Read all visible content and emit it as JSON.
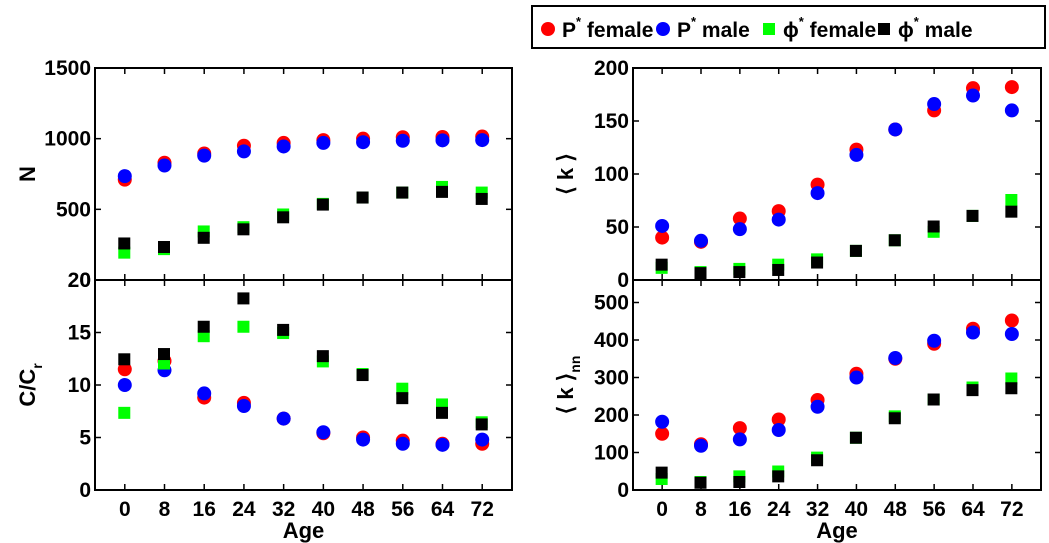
{
  "legend": {
    "items": [
      {
        "base": "P",
        "sup": "*",
        "rest": " female",
        "marker": "circle",
        "color": "#ff0000"
      },
      {
        "base": "P",
        "sup": "*",
        "rest": " male",
        "marker": "circle",
        "color": "#0000ff"
      },
      {
        "base": "ϕ",
        "sup": "*",
        "rest": " female",
        "marker": "square",
        "color": "#00ff00"
      },
      {
        "base": "ϕ",
        "sup": "*",
        "rest": " male",
        "marker": "square",
        "color": "#000000"
      }
    ]
  },
  "chart_data": [
    {
      "type": "scatter",
      "id": "N",
      "ylabel": "N",
      "xlabel": "",
      "x": [
        0,
        8,
        16,
        24,
        32,
        40,
        48,
        56,
        64,
        72
      ],
      "xlim": [
        -6,
        78
      ],
      "ylim": [
        0,
        1500
      ],
      "yticks": [
        0,
        500,
        1000,
        1500
      ],
      "series": [
        {
          "name": "P* female",
          "color": "#ff0000",
          "marker": "circle",
          "values": [
            710,
            830,
            895,
            950,
            970,
            990,
            1000,
            1010,
            1012,
            1015
          ]
        },
        {
          "name": "P* male",
          "color": "#0000ff",
          "marker": "circle",
          "values": [
            735,
            810,
            880,
            910,
            945,
            970,
            975,
            985,
            988,
            990
          ]
        },
        {
          "name": "ϕ* female",
          "color": "#00ff00",
          "marker": "square",
          "values": [
            190,
            215,
            340,
            370,
            460,
            535,
            580,
            615,
            655,
            615
          ]
        },
        {
          "name": "ϕ* male",
          "color": "#000000",
          "marker": "square",
          "values": [
            255,
            230,
            295,
            355,
            440,
            530,
            580,
            615,
            620,
            570
          ]
        }
      ]
    },
    {
      "type": "scatter",
      "id": "k",
      "ylabel": "⟨ k ⟩",
      "xlabel": "",
      "x": [
        0,
        8,
        16,
        24,
        32,
        40,
        48,
        56,
        64,
        72
      ],
      "xlim": [
        -6,
        78
      ],
      "ylim": [
        0,
        200
      ],
      "yticks": [
        0,
        50,
        100,
        150,
        200
      ],
      "series": [
        {
          "name": "P* female",
          "color": "#ff0000",
          "marker": "circle",
          "values": [
            40,
            36,
            58,
            65,
            90,
            123,
            142,
            160,
            181,
            182
          ]
        },
        {
          "name": "P* male",
          "color": "#0000ff",
          "marker": "circle",
          "values": [
            51,
            37,
            48,
            57,
            82,
            118,
            142,
            166,
            174,
            160
          ]
        },
        {
          "name": "ϕ* female",
          "color": "#00ff00",
          "marker": "square",
          "values": [
            11,
            7,
            10,
            14,
            19,
            27,
            37,
            45,
            60,
            75
          ]
        },
        {
          "name": "ϕ* male",
          "color": "#000000",
          "marker": "square",
          "values": [
            14,
            6,
            7,
            9,
            16,
            27,
            37,
            50,
            60,
            64
          ]
        }
      ]
    },
    {
      "type": "scatter",
      "id": "C",
      "ylabel": "C/C",
      "ylabel_sub": "r",
      "xlabel": "Age",
      "x": [
        0,
        8,
        16,
        24,
        32,
        40,
        48,
        56,
        64,
        72
      ],
      "xlim": [
        -6,
        78
      ],
      "ylim": [
        0,
        20
      ],
      "yticks": [
        0,
        5,
        10,
        15,
        20
      ],
      "series": [
        {
          "name": "P* female",
          "color": "#ff0000",
          "marker": "circle",
          "values": [
            11.5,
            12.3,
            8.8,
            8.3,
            6.8,
            5.4,
            5.0,
            4.7,
            4.4,
            4.4
          ]
        },
        {
          "name": "P* male",
          "color": "#0000ff",
          "marker": "circle",
          "values": [
            10.0,
            11.4,
            9.2,
            8.0,
            6.8,
            5.5,
            4.8,
            4.4,
            4.3,
            4.8
          ]
        },
        {
          "name": "ϕ* female",
          "color": "#00ff00",
          "marker": "square",
          "values": [
            7.3,
            12.0,
            14.6,
            15.5,
            14.9,
            12.2,
            11.0,
            9.6,
            8.1,
            6.4
          ]
        },
        {
          "name": "ϕ* male",
          "color": "#000000",
          "marker": "square",
          "values": [
            12.4,
            12.9,
            15.5,
            18.2,
            15.2,
            12.7,
            10.9,
            8.7,
            7.3,
            6.2
          ]
        }
      ]
    },
    {
      "type": "scatter",
      "id": "knn",
      "ylabel": "⟨ k ⟩",
      "ylabel_sub": "nn",
      "xlabel": "Age",
      "x": [
        0,
        8,
        16,
        24,
        32,
        40,
        48,
        56,
        64,
        72
      ],
      "xlim": [
        -6,
        78
      ],
      "ylim": [
        0,
        560
      ],
      "yticks": [
        0,
        100,
        200,
        300,
        400,
        500
      ],
      "series": [
        {
          "name": "P* female",
          "color": "#ff0000",
          "marker": "circle",
          "values": [
            150,
            122,
            165,
            188,
            240,
            310,
            350,
            390,
            430,
            452
          ]
        },
        {
          "name": "P* male",
          "color": "#0000ff",
          "marker": "circle",
          "values": [
            182,
            118,
            135,
            160,
            222,
            300,
            352,
            398,
            420,
            416
          ]
        },
        {
          "name": "ϕ* female",
          "color": "#00ff00",
          "marker": "square",
          "values": [
            28,
            20,
            35,
            48,
            85,
            138,
            195,
            240,
            272,
            296
          ]
        },
        {
          "name": "ϕ* male",
          "color": "#000000",
          "marker": "square",
          "values": [
            45,
            18,
            20,
            35,
            78,
            138,
            190,
            240,
            265,
            270
          ]
        }
      ]
    }
  ]
}
